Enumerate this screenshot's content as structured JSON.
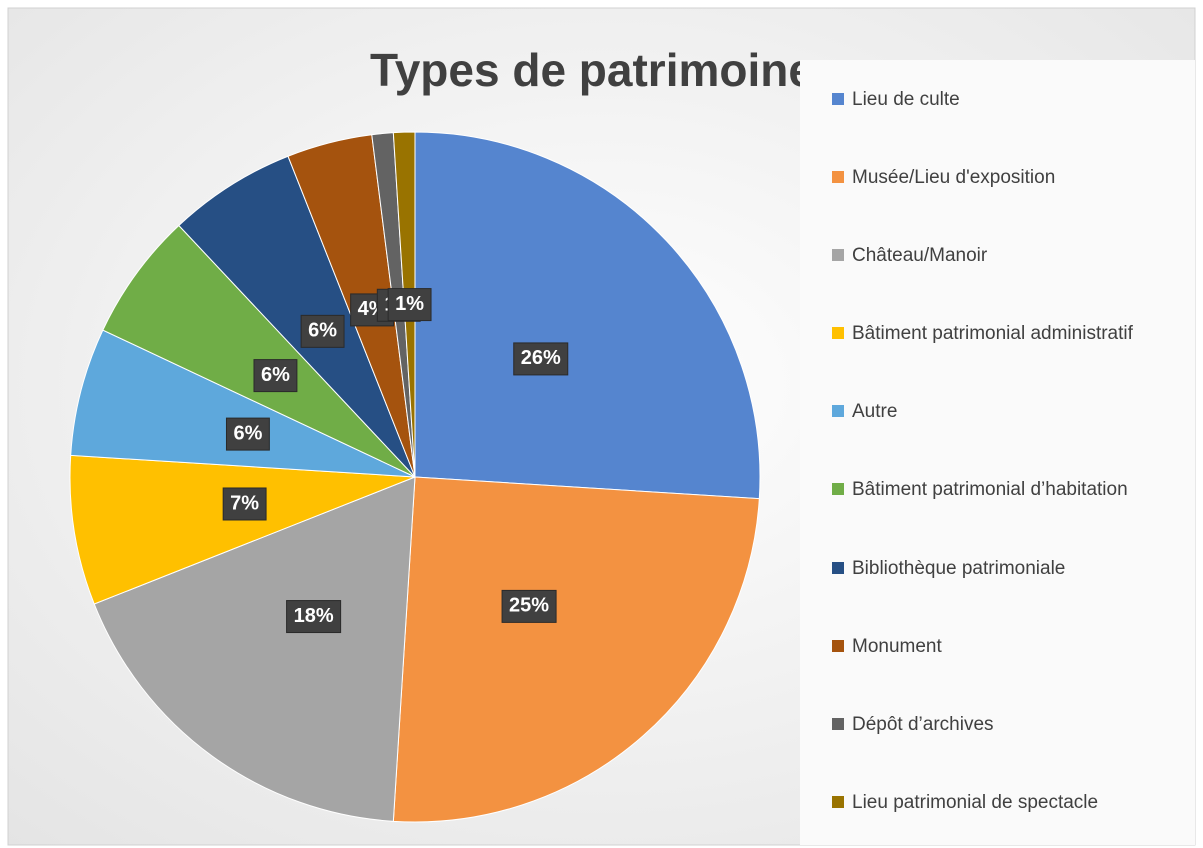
{
  "chart_data": {
    "type": "pie",
    "title": "Types de patrimoine",
    "categories": [
      "Lieu de culte",
      "Musée/Lieu d'exposition",
      "Château/Manoir",
      "Bâtiment patrimonial administratif",
      "Autre",
      "Bâtiment patrimonial d’habitation",
      "Bibliothèque patrimoniale",
      "Monument",
      "Dépôt d’archives",
      "Lieu patrimonial de spectacle"
    ],
    "values": [
      26,
      25,
      18,
      7,
      6,
      6,
      6,
      4,
      1,
      1
    ],
    "value_labels": [
      "26%",
      "25%",
      "18%",
      "7%",
      "6%",
      "6%",
      "6%",
      "4%",
      "1%",
      "1%"
    ],
    "colors": [
      "#5585cf",
      "#f39241",
      "#a5a5a5",
      "#ffc000",
      "#5ea8dc",
      "#70ad47",
      "#264f84",
      "#a5530e",
      "#636363",
      "#997300"
    ],
    "legend": "right"
  }
}
